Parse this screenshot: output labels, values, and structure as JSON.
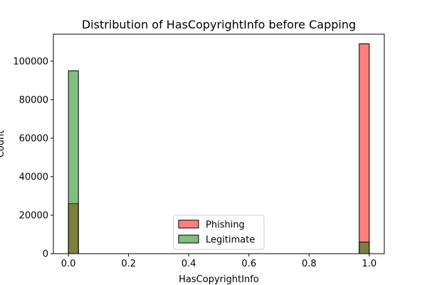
{
  "chart_data": {
    "type": "bar",
    "title": "Distribution of HasCopyrightInfo before Capping",
    "xlabel": "HasCopyrightInfo",
    "ylabel": "Count",
    "xlim": [
      -0.05,
      1.05
    ],
    "ylim": [
      0,
      114000
    ],
    "xticks": [
      0.0,
      0.2,
      0.4,
      0.6,
      0.8,
      1.0
    ],
    "xtick_labels": [
      "0.0",
      "0.2",
      "0.4",
      "0.6",
      "0.8",
      "1.0"
    ],
    "yticks": [
      0,
      20000,
      40000,
      60000,
      80000,
      100000
    ],
    "ytick_labels": [
      "0",
      "20000",
      "40000",
      "60000",
      "80000",
      "100000"
    ],
    "bin_width": 0.0333,
    "grid": false,
    "legend_position": "bottom-center",
    "colors": {
      "phishing": "#ff0000",
      "legitimate": "#008000",
      "overlap": "#808040",
      "edge": "#000000"
    },
    "series": [
      {
        "name": "Phishing",
        "bins": [
          {
            "x": 0.0,
            "value": 26000
          },
          {
            "x": 0.9667,
            "value": 109000
          }
        ]
      },
      {
        "name": "Legitimate",
        "bins": [
          {
            "x": 0.0,
            "value": 95000
          },
          {
            "x": 0.9667,
            "value": 6000
          }
        ]
      }
    ]
  }
}
